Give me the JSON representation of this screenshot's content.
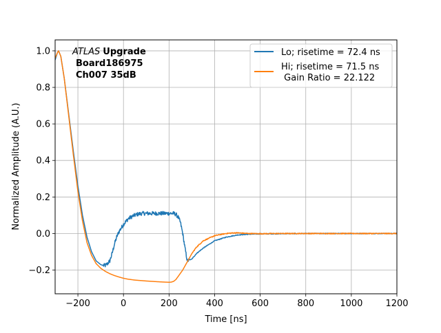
{
  "chart_data": {
    "type": "line",
    "xlabel": "Time [ns]",
    "ylabel": "Normalized Amplitude (A.U.)",
    "xlim": [
      -300,
      1200
    ],
    "ylim": [
      -0.33,
      1.06
    ],
    "grid": true,
    "legend_placement": "top-right",
    "x_ticks": [
      -200,
      0,
      200,
      400,
      600,
      800,
      1000,
      1200
    ],
    "x_tick_labels": [
      "−200",
      "0",
      "200",
      "400",
      "600",
      "800",
      "1000",
      "1200"
    ],
    "y_ticks": [
      -0.2,
      0.0,
      0.2,
      0.4,
      0.6,
      0.8,
      1.0
    ],
    "y_tick_labels": [
      "−0.2",
      "0.0",
      "0.2",
      "0.4",
      "0.6",
      "0.8",
      "1.0"
    ],
    "annotation": {
      "atlas": "ATLAS",
      "upgrade": "Upgrade",
      "board": "Board186975",
      "channel": "Ch007 35dB"
    },
    "series": [
      {
        "name": "Lo; risetime = 72.4 ns",
        "color": "#1f77b4",
        "noisy": true,
        "x": [
          -300,
          -290,
          -285,
          -275,
          -260,
          -240,
          -220,
          -200,
          -180,
          -160,
          -140,
          -120,
          -100,
          -90,
          -80,
          -70,
          -60,
          -50,
          -40,
          -30,
          -20,
          -10,
          0,
          10,
          20,
          40,
          60,
          80,
          100,
          150,
          200,
          220,
          230,
          240,
          250,
          260,
          270,
          280,
          300,
          320,
          350,
          400,
          450,
          500,
          550,
          600,
          700,
          800,
          900,
          1000,
          1100,
          1200
        ],
        "y": [
          0.95,
          0.99,
          1.0,
          0.97,
          0.85,
          0.65,
          0.45,
          0.26,
          0.1,
          -0.02,
          -0.1,
          -0.15,
          -0.17,
          -0.175,
          -0.175,
          -0.165,
          -0.15,
          -0.11,
          -0.06,
          -0.02,
          0.01,
          0.03,
          0.05,
          0.065,
          0.08,
          0.095,
          0.105,
          0.11,
          0.11,
          0.11,
          0.11,
          0.11,
          0.105,
          0.09,
          0.06,
          0.0,
          -0.08,
          -0.15,
          -0.14,
          -0.11,
          -0.08,
          -0.04,
          -0.02,
          -0.008,
          -0.004,
          -0.002,
          -0.001,
          0.0,
          0.0,
          0.0,
          0.0,
          0.0
        ]
      },
      {
        "name": "Hi; risetime = 71.5 ns\n Gain Ratio = 22.122",
        "color": "#ff7f0e",
        "noisy": false,
        "x": [
          -300,
          -290,
          -285,
          -275,
          -260,
          -240,
          -220,
          -200,
          -180,
          -160,
          -140,
          -120,
          -100,
          -80,
          -60,
          -40,
          -20,
          0,
          20,
          50,
          100,
          150,
          180,
          200,
          210,
          220,
          230,
          240,
          260,
          280,
          300,
          320,
          350,
          400,
          450,
          480,
          500,
          520,
          550,
          600,
          700,
          800,
          900,
          1000,
          1100,
          1200
        ],
        "y": [
          0.96,
          0.99,
          1.0,
          0.97,
          0.85,
          0.64,
          0.43,
          0.23,
          0.07,
          -0.05,
          -0.12,
          -0.165,
          -0.19,
          -0.207,
          -0.22,
          -0.23,
          -0.238,
          -0.245,
          -0.25,
          -0.255,
          -0.26,
          -0.264,
          -0.266,
          -0.267,
          -0.266,
          -0.262,
          -0.252,
          -0.235,
          -0.2,
          -0.155,
          -0.11,
          -0.075,
          -0.04,
          -0.012,
          0.0,
          0.003,
          0.004,
          0.002,
          0.0,
          -0.001,
          0.0,
          0.0,
          0.0,
          0.0,
          0.0,
          0.0
        ]
      }
    ]
  }
}
